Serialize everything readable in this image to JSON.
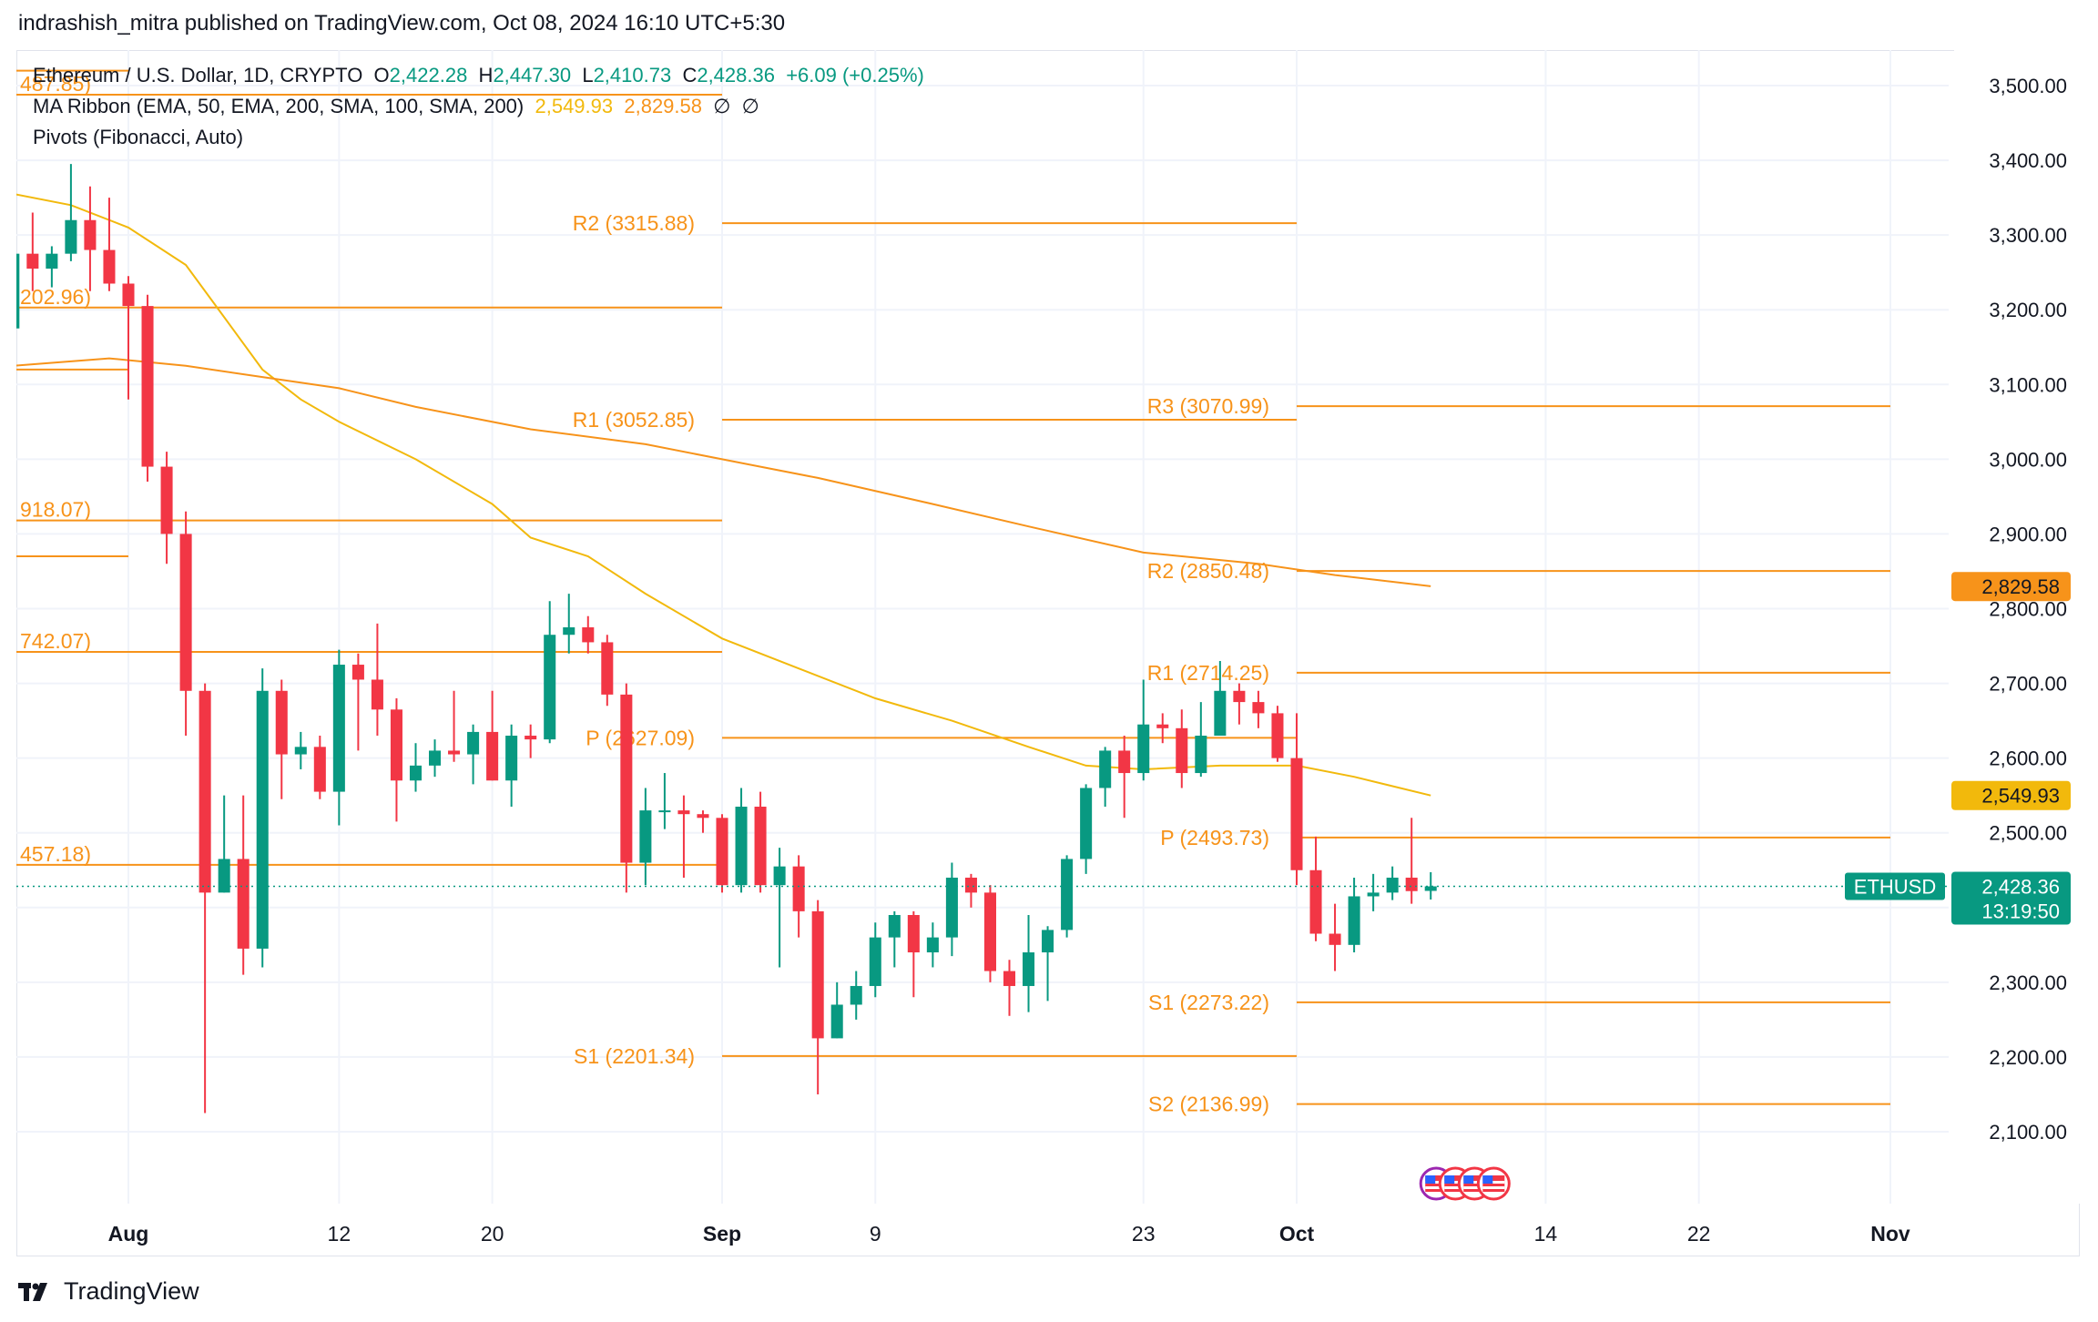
{
  "header": {
    "published_by": "indrashish_mitra published on TradingView.com, Oct 08, 2024 16:10 UTC+5:30"
  },
  "legend": {
    "symbol": "Ethereum / U.S. Dollar, 1D, CRYPTO",
    "o_label": "O",
    "o_value": "2,422.28",
    "h_label": "H",
    "h_value": "2,447.30",
    "l_label": "L",
    "l_value": "2,410.73",
    "c_label": "C",
    "c_value": "2,428.36",
    "change": "+6.09 (+0.25%)",
    "ma_ribbon": "MA Ribbon (EMA, 50, EMA, 200, SMA, 100, SMA, 200)",
    "ma_value_1": "2,549.93",
    "ma_value_2": "2,829.58",
    "ma_empty_1": "∅",
    "ma_empty_2": "∅",
    "pivots": "Pivots (Fibonacci, Auto)"
  },
  "footer": {
    "brand": "TradingView",
    "logo_icon": "tradingview-logo-icon"
  },
  "colors": {
    "up": "#089981",
    "down": "#f23645",
    "pivot": "#f7931a",
    "ma_fast": "#f2b90c",
    "ma_slow": "#f7931a",
    "grid": "#f0f3fa",
    "axis_text": "#131722"
  },
  "chart_data": {
    "type": "candlestick",
    "symbol": "ETHUSD",
    "ylim": [
      2000,
      3550
    ],
    "y_ticks": [
      "2,100.00",
      "2,200.00",
      "2,300.00",
      "2,400.00",
      "2,500.00",
      "2,600.00",
      "2,700.00",
      "2,800.00",
      "2,900.00",
      "3,000.00",
      "3,100.00",
      "3,200.00",
      "3,300.00",
      "3,400.00",
      "3,500.00"
    ],
    "y_tick_values": [
      2100,
      2200,
      2300,
      2400,
      2500,
      2600,
      2700,
      2800,
      2900,
      3000,
      3100,
      3200,
      3300,
      3400,
      3500
    ],
    "x_ticks": [
      {
        "label": "Aug",
        "date": "2024-08-01",
        "bold": true
      },
      {
        "label": "12",
        "date": "2024-08-12",
        "bold": false
      },
      {
        "label": "20",
        "date": "2024-08-20",
        "bold": false
      },
      {
        "label": "Sep",
        "date": "2024-09-01",
        "bold": true
      },
      {
        "label": "9",
        "date": "2024-09-09",
        "bold": false
      },
      {
        "label": "23",
        "date": "2024-09-23",
        "bold": false
      },
      {
        "label": "Oct",
        "date": "2024-10-01",
        "bold": true
      },
      {
        "label": "14",
        "date": "2024-10-14",
        "bold": false
      },
      {
        "label": "22",
        "date": "2024-10-22",
        "bold": false
      },
      {
        "label": "Nov",
        "date": "2024-11-01",
        "bold": true
      }
    ],
    "x_range": [
      "2024-07-26",
      "2024-11-11"
    ],
    "candles": [
      {
        "date": "2024-07-26",
        "o": 3175,
        "h": 3285,
        "l": 3165,
        "c": 3275
      },
      {
        "date": "2024-07-27",
        "o": 3275,
        "h": 3330,
        "l": 3225,
        "c": 3255
      },
      {
        "date": "2024-07-28",
        "o": 3255,
        "h": 3285,
        "l": 3230,
        "c": 3275
      },
      {
        "date": "2024-07-29",
        "o": 3275,
        "h": 3395,
        "l": 3265,
        "c": 3320
      },
      {
        "date": "2024-07-30",
        "o": 3320,
        "h": 3365,
        "l": 3225,
        "c": 3280
      },
      {
        "date": "2024-07-31",
        "o": 3280,
        "h": 3350,
        "l": 3225,
        "c": 3235
      },
      {
        "date": "2024-08-01",
        "o": 3235,
        "h": 3245,
        "l": 3080,
        "c": 3205
      },
      {
        "date": "2024-08-02",
        "o": 3205,
        "h": 3220,
        "l": 2970,
        "c": 2990
      },
      {
        "date": "2024-08-03",
        "o": 2990,
        "h": 3010,
        "l": 2860,
        "c": 2900
      },
      {
        "date": "2024-08-04",
        "o": 2900,
        "h": 2930,
        "l": 2630,
        "c": 2690
      },
      {
        "date": "2024-08-05",
        "o": 2690,
        "h": 2700,
        "l": 2125,
        "c": 2420
      },
      {
        "date": "2024-08-06",
        "o": 2420,
        "h": 2550,
        "l": 2420,
        "c": 2465
      },
      {
        "date": "2024-08-07",
        "o": 2465,
        "h": 2550,
        "l": 2310,
        "c": 2345
      },
      {
        "date": "2024-08-08",
        "o": 2345,
        "h": 2720,
        "l": 2320,
        "c": 2690
      },
      {
        "date": "2024-08-09",
        "o": 2690,
        "h": 2705,
        "l": 2545,
        "c": 2605
      },
      {
        "date": "2024-08-10",
        "o": 2605,
        "h": 2635,
        "l": 2585,
        "c": 2615
      },
      {
        "date": "2024-08-11",
        "o": 2615,
        "h": 2630,
        "l": 2545,
        "c": 2555
      },
      {
        "date": "2024-08-12",
        "o": 2555,
        "h": 2745,
        "l": 2510,
        "c": 2725
      },
      {
        "date": "2024-08-13",
        "o": 2725,
        "h": 2740,
        "l": 2610,
        "c": 2705
      },
      {
        "date": "2024-08-14",
        "o": 2705,
        "h": 2780,
        "l": 2630,
        "c": 2665
      },
      {
        "date": "2024-08-15",
        "o": 2665,
        "h": 2680,
        "l": 2515,
        "c": 2570
      },
      {
        "date": "2024-08-16",
        "o": 2570,
        "h": 2620,
        "l": 2555,
        "c": 2590
      },
      {
        "date": "2024-08-17",
        "o": 2590,
        "h": 2625,
        "l": 2575,
        "c": 2610
      },
      {
        "date": "2024-08-18",
        "o": 2610,
        "h": 2690,
        "l": 2595,
        "c": 2605
      },
      {
        "date": "2024-08-19",
        "o": 2605,
        "h": 2645,
        "l": 2565,
        "c": 2635
      },
      {
        "date": "2024-08-20",
        "o": 2635,
        "h": 2690,
        "l": 2570,
        "c": 2570
      },
      {
        "date": "2024-08-21",
        "o": 2570,
        "h": 2645,
        "l": 2535,
        "c": 2630
      },
      {
        "date": "2024-08-22",
        "o": 2630,
        "h": 2645,
        "l": 2600,
        "c": 2625
      },
      {
        "date": "2024-08-23",
        "o": 2625,
        "h": 2810,
        "l": 2620,
        "c": 2765
      },
      {
        "date": "2024-08-24",
        "o": 2765,
        "h": 2820,
        "l": 2740,
        "c": 2775
      },
      {
        "date": "2024-08-25",
        "o": 2775,
        "h": 2790,
        "l": 2740,
        "c": 2755
      },
      {
        "date": "2024-08-26",
        "o": 2755,
        "h": 2765,
        "l": 2670,
        "c": 2685
      },
      {
        "date": "2024-08-27",
        "o": 2685,
        "h": 2700,
        "l": 2420,
        "c": 2460
      },
      {
        "date": "2024-08-28",
        "o": 2460,
        "h": 2560,
        "l": 2430,
        "c": 2530
      },
      {
        "date": "2024-08-29",
        "o": 2530,
        "h": 2580,
        "l": 2505,
        "c": 2530
      },
      {
        "date": "2024-08-30",
        "o": 2530,
        "h": 2550,
        "l": 2440,
        "c": 2525
      },
      {
        "date": "2024-08-31",
        "o": 2525,
        "h": 2530,
        "l": 2500,
        "c": 2520
      },
      {
        "date": "2024-09-01",
        "o": 2520,
        "h": 2525,
        "l": 2420,
        "c": 2430
      },
      {
        "date": "2024-09-02",
        "o": 2430,
        "h": 2560,
        "l": 2420,
        "c": 2535
      },
      {
        "date": "2024-09-03",
        "o": 2535,
        "h": 2555,
        "l": 2420,
        "c": 2430
      },
      {
        "date": "2024-09-04",
        "o": 2430,
        "h": 2480,
        "l": 2320,
        "c": 2455
      },
      {
        "date": "2024-09-05",
        "o": 2455,
        "h": 2470,
        "l": 2360,
        "c": 2395
      },
      {
        "date": "2024-09-06",
        "o": 2395,
        "h": 2410,
        "l": 2150,
        "c": 2225
      },
      {
        "date": "2024-09-07",
        "o": 2225,
        "h": 2300,
        "l": 2225,
        "c": 2270
      },
      {
        "date": "2024-09-08",
        "o": 2270,
        "h": 2315,
        "l": 2250,
        "c": 2295
      },
      {
        "date": "2024-09-09",
        "o": 2295,
        "h": 2380,
        "l": 2280,
        "c": 2360
      },
      {
        "date": "2024-09-10",
        "o": 2360,
        "h": 2395,
        "l": 2320,
        "c": 2390
      },
      {
        "date": "2024-09-11",
        "o": 2390,
        "h": 2395,
        "l": 2280,
        "c": 2340
      },
      {
        "date": "2024-09-12",
        "o": 2340,
        "h": 2380,
        "l": 2320,
        "c": 2360
      },
      {
        "date": "2024-09-13",
        "o": 2360,
        "h": 2460,
        "l": 2335,
        "c": 2440
      },
      {
        "date": "2024-09-14",
        "o": 2440,
        "h": 2445,
        "l": 2400,
        "c": 2420
      },
      {
        "date": "2024-09-15",
        "o": 2420,
        "h": 2430,
        "l": 2300,
        "c": 2315
      },
      {
        "date": "2024-09-16",
        "o": 2315,
        "h": 2330,
        "l": 2255,
        "c": 2295
      },
      {
        "date": "2024-09-17",
        "o": 2295,
        "h": 2390,
        "l": 2260,
        "c": 2340
      },
      {
        "date": "2024-09-18",
        "o": 2340,
        "h": 2375,
        "l": 2275,
        "c": 2370
      },
      {
        "date": "2024-09-19",
        "o": 2370,
        "h": 2470,
        "l": 2360,
        "c": 2465
      },
      {
        "date": "2024-09-20",
        "o": 2465,
        "h": 2565,
        "l": 2445,
        "c": 2560
      },
      {
        "date": "2024-09-21",
        "o": 2560,
        "h": 2615,
        "l": 2535,
        "c": 2610
      },
      {
        "date": "2024-09-22",
        "o": 2610,
        "h": 2630,
        "l": 2520,
        "c": 2580
      },
      {
        "date": "2024-09-23",
        "o": 2580,
        "h": 2705,
        "l": 2570,
        "c": 2645
      },
      {
        "date": "2024-09-24",
        "o": 2645,
        "h": 2660,
        "l": 2620,
        "c": 2640
      },
      {
        "date": "2024-09-25",
        "o": 2640,
        "h": 2665,
        "l": 2560,
        "c": 2580
      },
      {
        "date": "2024-09-26",
        "o": 2580,
        "h": 2675,
        "l": 2575,
        "c": 2630
      },
      {
        "date": "2024-09-27",
        "o": 2630,
        "h": 2730,
        "l": 2630,
        "c": 2690
      },
      {
        "date": "2024-09-28",
        "o": 2690,
        "h": 2700,
        "l": 2645,
        "c": 2675
      },
      {
        "date": "2024-09-29",
        "o": 2675,
        "h": 2690,
        "l": 2640,
        "c": 2660
      },
      {
        "date": "2024-09-30",
        "o": 2660,
        "h": 2670,
        "l": 2595,
        "c": 2600
      },
      {
        "date": "2024-10-01",
        "o": 2600,
        "h": 2660,
        "l": 2430,
        "c": 2450
      },
      {
        "date": "2024-10-02",
        "o": 2450,
        "h": 2495,
        "l": 2355,
        "c": 2365
      },
      {
        "date": "2024-10-03",
        "o": 2365,
        "h": 2405,
        "l": 2315,
        "c": 2350
      },
      {
        "date": "2024-10-04",
        "o": 2350,
        "h": 2440,
        "l": 2340,
        "c": 2415
      },
      {
        "date": "2024-10-05",
        "o": 2415,
        "h": 2445,
        "l": 2395,
        "c": 2420
      },
      {
        "date": "2024-10-06",
        "o": 2420,
        "h": 2455,
        "l": 2410,
        "c": 2440
      },
      {
        "date": "2024-10-07",
        "o": 2440,
        "h": 2520,
        "l": 2405,
        "c": 2422
      },
      {
        "date": "2024-10-08",
        "o": 2422.28,
        "h": 2447.3,
        "l": 2410.73,
        "c": 2428.36
      }
    ],
    "ma_series": [
      {
        "label": "2,549.93",
        "color": "#f2b90c",
        "points": [
          [
            "2024-07-26",
            3355
          ],
          [
            "2024-07-29",
            3340
          ],
          [
            "2024-08-01",
            3310
          ],
          [
            "2024-08-04",
            3260
          ],
          [
            "2024-08-06",
            3190
          ],
          [
            "2024-08-08",
            3120
          ],
          [
            "2024-08-10",
            3080
          ],
          [
            "2024-08-12",
            3050
          ],
          [
            "2024-08-16",
            3000
          ],
          [
            "2024-08-20",
            2940
          ],
          [
            "2024-08-22",
            2895
          ],
          [
            "2024-08-25",
            2870
          ],
          [
            "2024-08-28",
            2820
          ],
          [
            "2024-09-01",
            2760
          ],
          [
            "2024-09-05",
            2720
          ],
          [
            "2024-09-09",
            2680
          ],
          [
            "2024-09-13",
            2650
          ],
          [
            "2024-09-17",
            2615
          ],
          [
            "2024-09-20",
            2590
          ],
          [
            "2024-09-23",
            2585
          ],
          [
            "2024-09-27",
            2590
          ],
          [
            "2024-10-01",
            2590
          ],
          [
            "2024-10-04",
            2575
          ],
          [
            "2024-10-08",
            2550
          ]
        ]
      },
      {
        "label": "2,829.58",
        "color": "#f7931a",
        "points": [
          [
            "2024-07-26",
            3125
          ],
          [
            "2024-07-31",
            3135
          ],
          [
            "2024-08-04",
            3125
          ],
          [
            "2024-08-08",
            3110
          ],
          [
            "2024-08-12",
            3095
          ],
          [
            "2024-08-16",
            3070
          ],
          [
            "2024-08-22",
            3040
          ],
          [
            "2024-08-28",
            3020
          ],
          [
            "2024-09-01",
            3000
          ],
          [
            "2024-09-06",
            2975
          ],
          [
            "2024-09-12",
            2940
          ],
          [
            "2024-09-17",
            2910
          ],
          [
            "2024-09-23",
            2875
          ],
          [
            "2024-09-29",
            2860
          ],
          [
            "2024-10-03",
            2845
          ],
          [
            "2024-10-08",
            2830
          ]
        ]
      }
    ],
    "pivots": [
      {
        "label": "R2 (3315.88)",
        "value": 3315.88,
        "from": "2024-09-01",
        "to": "2024-10-01"
      },
      {
        "label": "R1 (3052.85)",
        "value": 3052.85,
        "from": "2024-09-01",
        "to": "2024-10-01"
      },
      {
        "label": "P (2627.09)",
        "value": 2627.09,
        "from": "2024-09-01",
        "to": "2024-10-01"
      },
      {
        "label": "S1 (2201.34)",
        "value": 2201.34,
        "from": "2024-09-01",
        "to": "2024-10-01"
      },
      {
        "label": "R3 (3070.99)",
        "value": 3070.99,
        "from": "2024-10-01",
        "to": "2024-11-01"
      },
      {
        "label": "R2 (2850.48)",
        "value": 2850.48,
        "from": "2024-10-01",
        "to": "2024-11-01"
      },
      {
        "label": "R1 (2714.25)",
        "value": 2714.25,
        "from": "2024-10-01",
        "to": "2024-11-01"
      },
      {
        "label": "P (2493.73)",
        "value": 2493.73,
        "from": "2024-10-01",
        "to": "2024-11-01"
      },
      {
        "label": "S1 (2273.22)",
        "value": 2273.22,
        "from": "2024-10-01",
        "to": "2024-11-01"
      },
      {
        "label": "S2 (2136.99)",
        "value": 2136.99,
        "from": "2024-10-01",
        "to": "2024-11-01"
      }
    ],
    "pivots_prev": [
      {
        "label": "487.85)",
        "value": 3487.85,
        "from": "2024-07-26",
        "to": "2024-09-01"
      },
      {
        "label": "202.96)",
        "value": 3202.96,
        "from": "2024-07-26",
        "to": "2024-09-01"
      },
      {
        "label": "918.07)",
        "value": 2918.07,
        "from": "2024-07-26",
        "to": "2024-09-01"
      },
      {
        "label": "742.07)",
        "value": 2742.07,
        "from": "2024-07-26",
        "to": "2024-09-01"
      },
      {
        "label": "457.18)",
        "value": 2457.18,
        "from": "2024-07-26",
        "to": "2024-09-01"
      }
    ],
    "pivots_prev_short": [
      {
        "value": 3520,
        "from": "2024-07-26",
        "to": "2024-08-01"
      },
      {
        "value": 3120,
        "from": "2024-07-26",
        "to": "2024-08-01"
      },
      {
        "value": 2870,
        "from": "2024-07-26",
        "to": "2024-08-01"
      }
    ],
    "last_price": {
      "symbol": "ETHUSD",
      "value": 2428.36,
      "label": "2,428.36",
      "countdown": "13:19:50"
    },
    "price_badges": [
      {
        "label": "2,829.58",
        "value": 2829.58,
        "color": "#f7931a"
      },
      {
        "label": "2,549.93",
        "value": 2549.93,
        "color": "#f2b90c"
      }
    ],
    "events_icons": [
      "us-flag-icon",
      "us-flag-icon",
      "us-flag-icon",
      "us-flag-icon"
    ]
  }
}
